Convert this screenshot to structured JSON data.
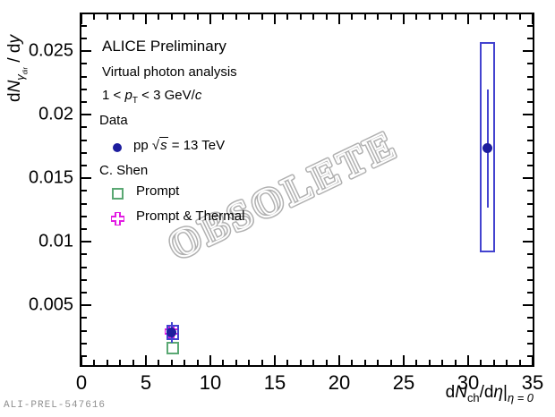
{
  "colors": {
    "marker_blue": "#1d1d9e",
    "line_blue": "#4343cf",
    "green": "#5aa873",
    "magenta": "#e21ce2",
    "axis_black": "#000000",
    "watermark_gray": "#b0b0b0",
    "footer_gray": "#8f8f8f"
  },
  "annotations": {
    "line1": "ALICE Preliminary",
    "line2": "Virtual photon analysis",
    "pt_cut": {
      "pre": "1 < ",
      "p": "p",
      "sub": "T",
      "post": " < 3 GeV/",
      "c": "c"
    },
    "data_header": "Data",
    "pp": {
      "pre": "pp ",
      "sqrt": "√",
      "s": "s",
      "post": " = 13 TeV"
    },
    "model_header": "C. Shen",
    "prompt_label": "Prompt",
    "prompt_thermal_label": "Prompt & Thermal"
  },
  "watermark": "OBSOLETE",
  "footer": "ALI-PREL-547616",
  "chart_data": {
    "type": "scatter",
    "title": "",
    "grid": false,
    "legend_position": "top-left",
    "x_axis": {
      "range": [
        0,
        35
      ],
      "major_ticks": [
        0,
        5,
        10,
        15,
        20,
        25,
        30,
        35
      ],
      "tick_labels": [
        "0",
        "5",
        "10",
        "15",
        "20",
        "25",
        "30",
        "35"
      ],
      "minor_step": 1,
      "title_parts": {
        "d1": "d",
        "N": "N",
        "sub": "ch",
        "mid": "/d",
        "eta": "η",
        "bar": "|",
        "cond": "η = 0"
      }
    },
    "y_axis": {
      "range": [
        0.0003,
        0.0279
      ],
      "major_ticks": [
        0.005,
        0.01,
        0.015,
        0.02,
        0.025
      ],
      "tick_labels": [
        "0.005",
        "0.01",
        "0.015",
        "0.02",
        "0.025"
      ],
      "minor_step": 0.001,
      "title_parts": {
        "d1": "d",
        "N": "N",
        "gamma": "γ",
        "dir": "dir",
        "mid": " / d",
        "y": "y"
      }
    },
    "series": [
      {
        "name": "pp √s = 13 TeV",
        "marker": "filled-circle",
        "marker_color": "#1d1d9e",
        "line_color": "#4343cf",
        "points": [
          {
            "x": 7.0,
            "y": 0.0029,
            "stat": [
              0.00205,
              0.0037
            ],
            "syst_box": {
              "x": [
                6.6,
                7.55
              ],
              "y": [
                0.00225,
                0.00345
              ]
            }
          },
          {
            "x": 31.5,
            "y": 0.0174,
            "stat": [
              0.0127,
              0.022
            ],
            "syst_box": {
              "x": [
                30.9,
                32.05
              ],
              "y": [
                0.0092,
                0.0257
              ]
            }
          }
        ]
      },
      {
        "name": "Prompt",
        "marker": "open-square",
        "marker_color": "#5aa873",
        "points": [
          {
            "x": 7.1,
            "y": 0.00165
          }
        ]
      },
      {
        "name": "Prompt & Thermal",
        "marker": "open-cross",
        "marker_color": "#e21ce2",
        "points": [
          {
            "x": 7.0,
            "y": 0.00297
          }
        ]
      }
    ]
  }
}
